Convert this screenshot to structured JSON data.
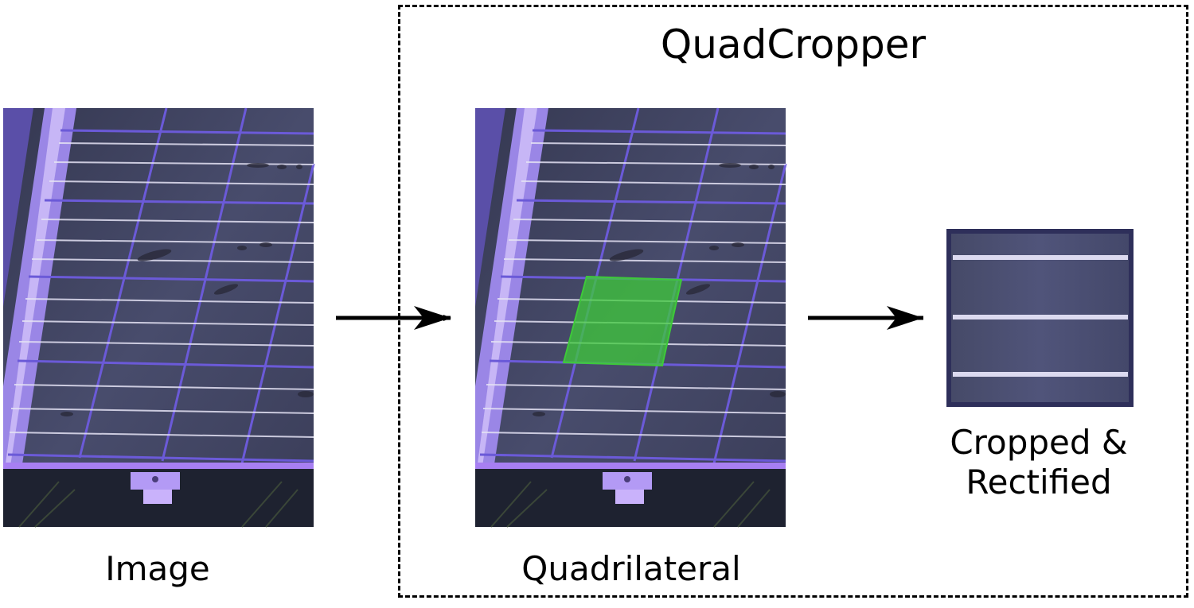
{
  "diagram": {
    "title": "QuadCropper",
    "labels": {
      "input": "Image",
      "quadrilateral": "Quadrilateral",
      "output": "Cropped & Rectified"
    },
    "colors": {
      "panel_bg": "#3e4262",
      "panel_frame": "#a77ff2",
      "grid_line": "#6a5ad8",
      "busbar": "#e6e6f2",
      "highlight": "#3ec93a",
      "arrow": "#000000"
    }
  }
}
